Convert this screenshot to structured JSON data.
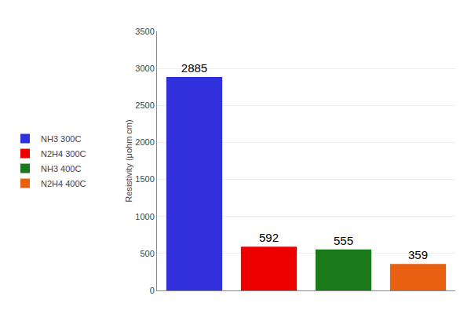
{
  "chart_data": {
    "type": "bar",
    "categories": [
      "NH3 300C",
      "N2H4 300C",
      "NH3 400C",
      "N2H4 400C"
    ],
    "values": [
      2885,
      592,
      555,
      359
    ],
    "colors": [
      "#3030dd",
      "#ee0000",
      "#1a7a1a",
      "#e86010"
    ],
    "ylabel": "Resistivity (μohm cm)",
    "ylim": [
      0,
      3500
    ],
    "yticks": [
      0,
      500,
      1000,
      1500,
      2000,
      2500,
      3000,
      3500
    ],
    "grid": true,
    "legend": "left",
    "data_labels": true,
    "tick_labels": "y"
  }
}
